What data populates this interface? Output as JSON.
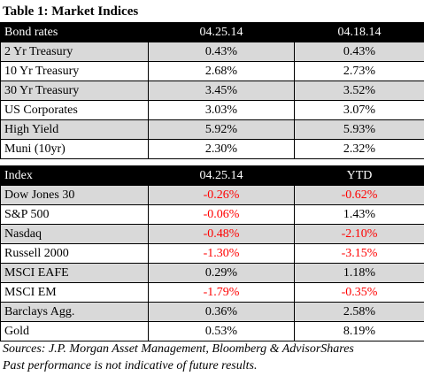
{
  "title": "Table 1: Market Indices",
  "bonds": {
    "header": [
      "Bond rates",
      "04.25.14",
      "04.18.14"
    ],
    "rows": [
      {
        "label": "2 Yr Treasury",
        "a": "0.43%",
        "b": "0.43%",
        "shade": true,
        "a_neg": false,
        "b_neg": false
      },
      {
        "label": "10 Yr Treasury",
        "a": "2.68%",
        "b": "2.73%",
        "shade": false,
        "a_neg": false,
        "b_neg": false
      },
      {
        "label": "30 Yr Treasury",
        "a": "3.45%",
        "b": "3.52%",
        "shade": true,
        "a_neg": false,
        "b_neg": false
      },
      {
        "label": "US Corporates",
        "a": "3.03%",
        "b": "3.07%",
        "shade": false,
        "a_neg": false,
        "b_neg": false
      },
      {
        "label": "High Yield",
        "a": "5.92%",
        "b": "5.93%",
        "shade": true,
        "a_neg": false,
        "b_neg": false
      },
      {
        "label": "Muni (10yr)",
        "a": "2.30%",
        "b": "2.32%",
        "shade": false,
        "a_neg": false,
        "b_neg": false
      }
    ]
  },
  "index": {
    "header": [
      "Index",
      "04.25.14",
      "YTD"
    ],
    "rows": [
      {
        "label": "Dow Jones 30",
        "a": "-0.26%",
        "b": "-0.62%",
        "shade": true,
        "a_neg": true,
        "b_neg": true
      },
      {
        "label": "S&P 500",
        "a": "-0.06%",
        "b": "1.43%",
        "shade": false,
        "a_neg": true,
        "b_neg": false
      },
      {
        "label": "Nasdaq",
        "a": "-0.48%",
        "b": "-2.10%",
        "shade": true,
        "a_neg": true,
        "b_neg": true
      },
      {
        "label": "Russell 2000",
        "a": "-1.30%",
        "b": "-3.15%",
        "shade": false,
        "a_neg": true,
        "b_neg": true
      },
      {
        "label": "MSCI EAFE",
        "a": "0.29%",
        "b": "1.18%",
        "shade": true,
        "a_neg": false,
        "b_neg": false
      },
      {
        "label": "MSCI EM",
        "a": "-1.79%",
        "b": "-0.35%",
        "shade": false,
        "a_neg": true,
        "b_neg": true
      },
      {
        "label": "Barclays Agg.",
        "a": "0.36%",
        "b": "2.58%",
        "shade": true,
        "a_neg": false,
        "b_neg": false
      },
      {
        "label": "Gold",
        "a": "0.53%",
        "b": "8.19%",
        "shade": false,
        "a_neg": false,
        "b_neg": false
      }
    ]
  },
  "sources_line": "Sources: J.P. Morgan Asset Management, Bloomberg & AdvisorShares",
  "disclaimer_line": "Past performance is not indicative of future results.",
  "colors": {
    "negative": "#ff0000",
    "header_bg": "#000000",
    "shade_bg": "#d9d9d9"
  }
}
